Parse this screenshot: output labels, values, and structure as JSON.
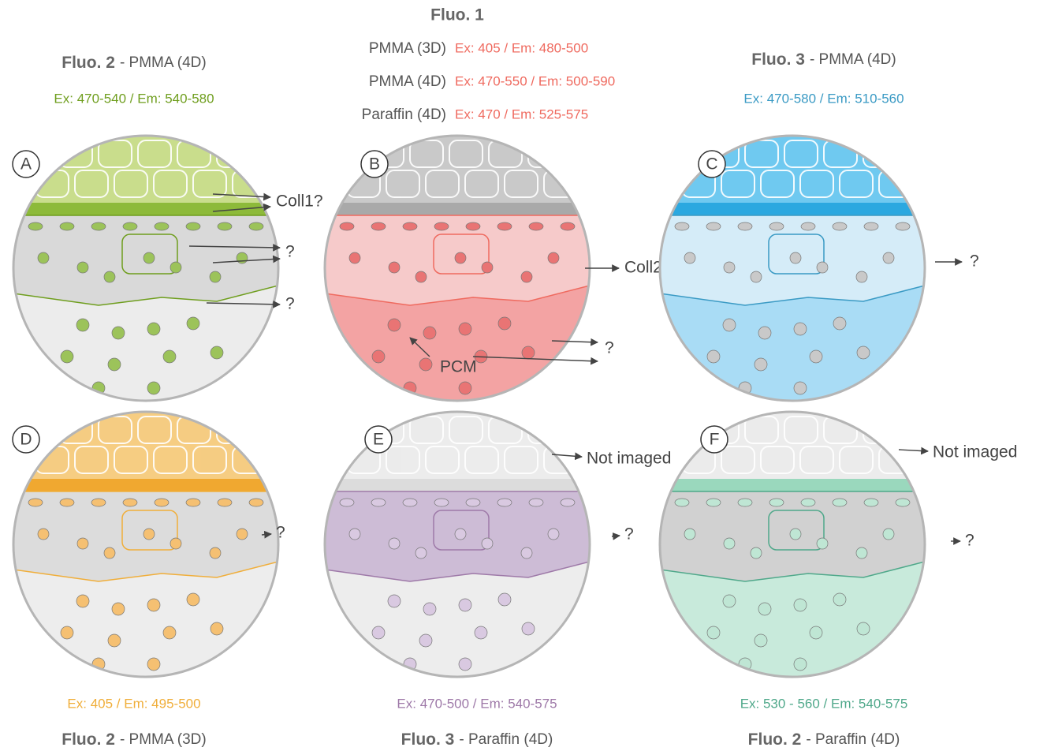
{
  "header": {
    "title": "Fluo. 1",
    "rows": [
      {
        "medium": "PMMA (3D)",
        "spectra": "Ex: 405 / Em: 480-500"
      },
      {
        "medium": "PMMA (4D)",
        "spectra": "Ex: 470-550 / Em: 500-590"
      },
      {
        "medium": "Paraffin (4D)",
        "spectra": "Ex: 470 / Em: 525-575"
      }
    ]
  },
  "panels": [
    {
      "letter": "A",
      "fluo": "Fluo. 2",
      "medium": "- PMMA (4D)",
      "spectra": "Ex: 470-540 / Em: 540-580",
      "labels": [
        "Coll1?",
        "?",
        "?"
      ]
    },
    {
      "letter": "B",
      "labels": [
        "Coll2",
        "PCM",
        "?"
      ]
    },
    {
      "letter": "C",
      "fluo": "Fluo. 3",
      "medium": "- PMMA (4D)",
      "spectra": "Ex: 470-580 / Em: 510-560",
      "labels": [
        "?"
      ]
    },
    {
      "letter": "D",
      "fluo": "Fluo. 2",
      "medium": "- PMMA (3D)",
      "spectra": "Ex: 405 / Em: 495-500",
      "labels": [
        "?"
      ]
    },
    {
      "letter": "E",
      "fluo": "Fluo. 3",
      "medium": "- Paraffin (4D)",
      "spectra": "Ex: 470-500 / Em: 540-575",
      "labels": [
        "Not imaged",
        "?"
      ]
    },
    {
      "letter": "F",
      "fluo": "Fluo. 2",
      "medium": "- Paraffin (4D)",
      "spectra": "Ex: 530 - 560 / Em: 540-575",
      "labels": [
        "Not imaged",
        "?"
      ]
    }
  ]
}
